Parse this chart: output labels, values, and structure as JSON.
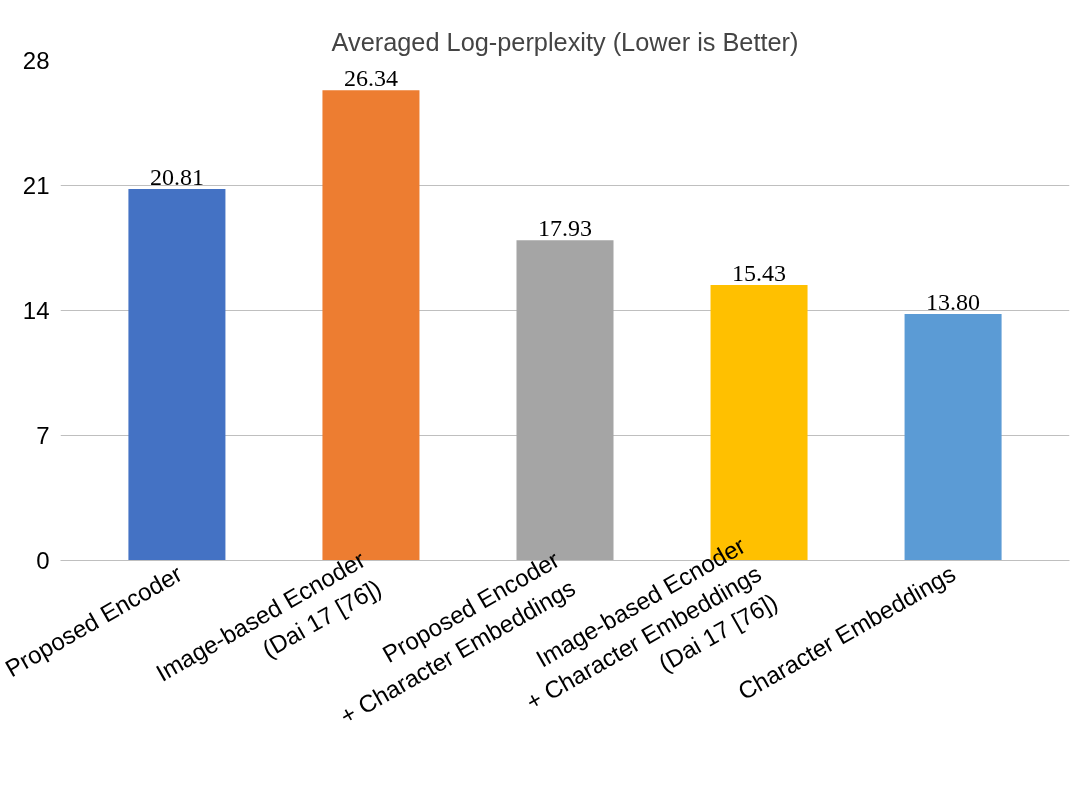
{
  "chart_data": {
    "type": "bar",
    "title": "Averaged Log-perplexity (Lower is Better)",
    "categories": [
      "Proposed Encoder",
      "Image-based Ecnoder\n(Dai 17 [76])",
      "Proposed Encoder\n+ Character Embeddings",
      "Image-based Ecnoder\n+ Character Embeddings\n(Dai 17 [76])",
      "Character Embeddings"
    ],
    "values": [
      20.81,
      26.34,
      17.93,
      15.43,
      13.8
    ],
    "value_labels": [
      "20.81",
      "26.34",
      "17.93",
      "15.43",
      "13.80"
    ],
    "colors": [
      "#4472c4",
      "#ed7d31",
      "#a5a5a5",
      "#ffc000",
      "#5b9bd5"
    ],
    "ylim": [
      0,
      28
    ],
    "yticks": [
      0,
      7,
      14,
      21,
      28
    ],
    "grid": "y"
  }
}
